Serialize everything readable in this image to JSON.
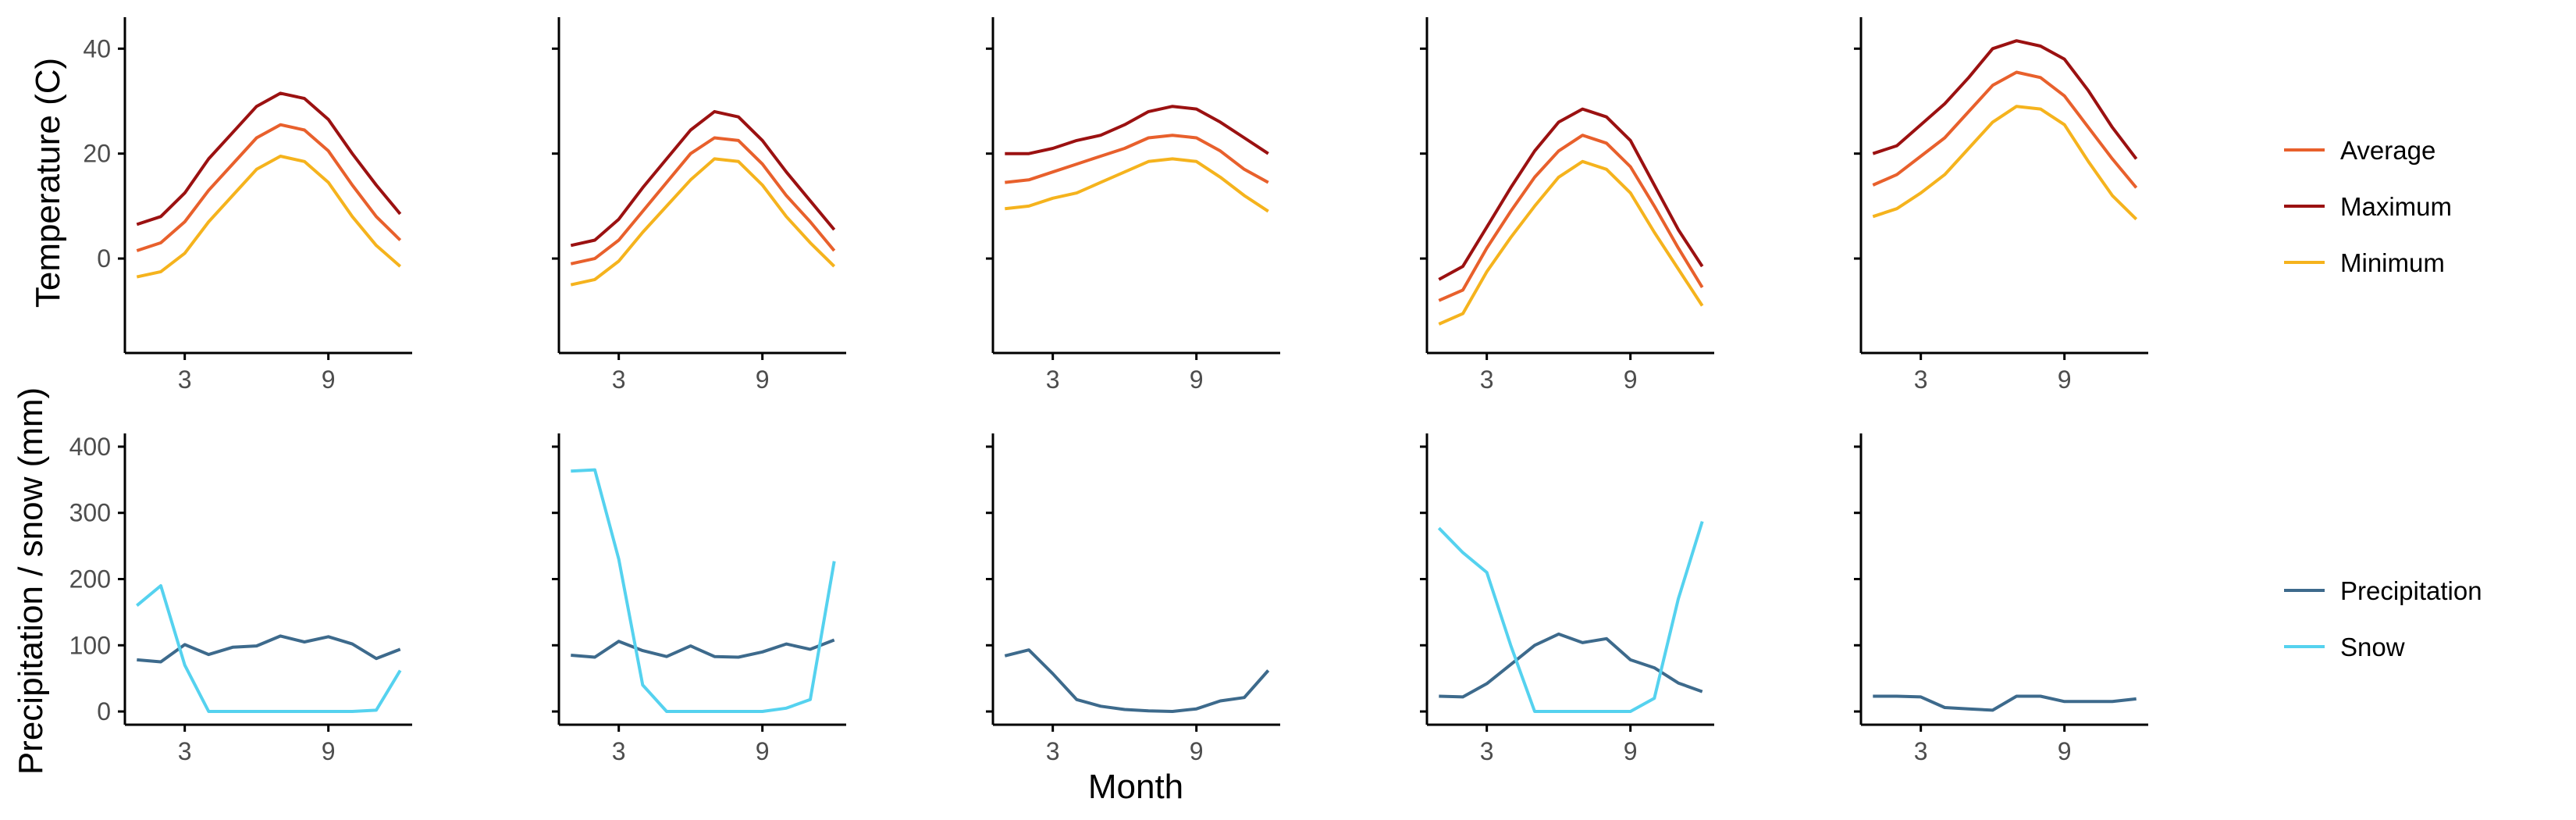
{
  "chart_data": [
    {
      "type": "line",
      "panel": "temperature",
      "column": 1,
      "x": [
        1,
        2,
        3,
        4,
        5,
        6,
        7,
        8,
        9,
        10,
        11,
        12
      ],
      "ylim": [
        -18,
        46
      ],
      "series": [
        {
          "name": "Average",
          "values": [
            1.5,
            3,
            7,
            13,
            18,
            23,
            25.5,
            24.5,
            20.5,
            14,
            8,
            3.5
          ]
        },
        {
          "name": "Maximum",
          "values": [
            6.5,
            8,
            12.5,
            19,
            24,
            29,
            31.5,
            30.5,
            26.5,
            20,
            14,
            8.5
          ]
        },
        {
          "name": "Minimum",
          "values": [
            -3.5,
            -2.5,
            1,
            7,
            12,
            17,
            19.5,
            18.5,
            14.5,
            8,
            2.5,
            -1.5
          ]
        }
      ]
    },
    {
      "type": "line",
      "panel": "temperature",
      "column": 2,
      "x": [
        1,
        2,
        3,
        4,
        5,
        6,
        7,
        8,
        9,
        10,
        11,
        12
      ],
      "ylim": [
        -18,
        46
      ],
      "series": [
        {
          "name": "Average",
          "values": [
            -1,
            0,
            3.5,
            9,
            14.5,
            20,
            23,
            22.5,
            18,
            12,
            7,
            1.5
          ]
        },
        {
          "name": "Maximum",
          "values": [
            2.5,
            3.5,
            7.5,
            13.5,
            19,
            24.5,
            28,
            27,
            22.5,
            16.5,
            11,
            5.5
          ]
        },
        {
          "name": "Minimum",
          "values": [
            -5,
            -4,
            -0.5,
            5,
            10,
            15,
            19,
            18.5,
            14,
            8,
            3,
            -1.5
          ]
        }
      ]
    },
    {
      "type": "line",
      "panel": "temperature",
      "column": 3,
      "x": [
        1,
        2,
        3,
        4,
        5,
        6,
        7,
        8,
        9,
        10,
        11,
        12
      ],
      "ylim": [
        -18,
        46
      ],
      "series": [
        {
          "name": "Average",
          "values": [
            14.5,
            15,
            16.5,
            18,
            19.5,
            21,
            23,
            23.5,
            23,
            20.5,
            17,
            14.5
          ]
        },
        {
          "name": "Maximum",
          "values": [
            20,
            20,
            21,
            22.5,
            23.5,
            25.5,
            28,
            29,
            28.5,
            26,
            23,
            20
          ]
        },
        {
          "name": "Minimum",
          "values": [
            9.5,
            10,
            11.5,
            12.5,
            14.5,
            16.5,
            18.5,
            19,
            18.5,
            15.5,
            12,
            9
          ]
        }
      ]
    },
    {
      "type": "line",
      "panel": "temperature",
      "column": 4,
      "x": [
        1,
        2,
        3,
        4,
        5,
        6,
        7,
        8,
        9,
        10,
        11,
        12
      ],
      "ylim": [
        -18,
        46
      ],
      "series": [
        {
          "name": "Average",
          "values": [
            -8,
            -6,
            2,
            9,
            15.5,
            20.5,
            23.5,
            22,
            17.5,
            10,
            2,
            -5.5
          ]
        },
        {
          "name": "Maximum",
          "values": [
            -4,
            -1.5,
            6,
            13.5,
            20.5,
            26,
            28.5,
            27,
            22.5,
            14,
            5.5,
            -1.5
          ]
        },
        {
          "name": "Minimum",
          "values": [
            -12.5,
            -10.5,
            -2.5,
            4,
            10,
            15.5,
            18.5,
            17,
            12.5,
            5,
            -2,
            -9
          ]
        }
      ]
    },
    {
      "type": "line",
      "panel": "temperature",
      "column": 5,
      "x": [
        1,
        2,
        3,
        4,
        5,
        6,
        7,
        8,
        9,
        10,
        11,
        12
      ],
      "ylim": [
        -18,
        46
      ],
      "series": [
        {
          "name": "Average",
          "values": [
            14,
            16,
            19.5,
            23,
            28,
            33,
            35.5,
            34.5,
            31,
            25,
            19,
            13.5
          ]
        },
        {
          "name": "Maximum",
          "values": [
            20,
            21.5,
            25.5,
            29.5,
            34.5,
            40,
            41.5,
            40.5,
            38,
            32,
            25,
            19
          ]
        },
        {
          "name": "Minimum",
          "values": [
            8,
            9.5,
            12.5,
            16,
            21,
            26,
            29,
            28.5,
            25.5,
            18.5,
            12,
            7.5
          ]
        }
      ]
    },
    {
      "type": "line",
      "panel": "precipitation",
      "column": 1,
      "x": [
        1,
        2,
        3,
        4,
        5,
        6,
        7,
        8,
        9,
        10,
        11,
        12
      ],
      "ylim": [
        -20,
        420
      ],
      "series": [
        {
          "name": "Precipitation",
          "values": [
            78,
            75,
            101,
            86,
            97,
            99,
            114,
            105,
            113,
            102,
            80,
            94
          ]
        },
        {
          "name": "Snow",
          "values": [
            160,
            190,
            70,
            0,
            0,
            0,
            0,
            0,
            0,
            0,
            2,
            62
          ]
        }
      ]
    },
    {
      "type": "line",
      "panel": "precipitation",
      "column": 2,
      "x": [
        1,
        2,
        3,
        4,
        5,
        6,
        7,
        8,
        9,
        10,
        11,
        12
      ],
      "ylim": [
        -20,
        420
      ],
      "series": [
        {
          "name": "Precipitation",
          "values": [
            85,
            82,
            106,
            92,
            83,
            99,
            83,
            82,
            90,
            102,
            94,
            108
          ]
        },
        {
          "name": "Snow",
          "values": [
            363,
            365,
            230,
            40,
            0,
            0,
            0,
            0,
            0,
            5,
            18,
            227
          ]
        }
      ]
    },
    {
      "type": "line",
      "panel": "precipitation",
      "column": 3,
      "x": [
        1,
        2,
        3,
        4,
        5,
        6,
        7,
        8,
        9,
        10,
        11,
        12
      ],
      "ylim": [
        -20,
        420
      ],
      "series": [
        {
          "name": "Precipitation",
          "values": [
            84,
            93,
            57,
            18,
            8,
            3,
            1,
            0,
            4,
            16,
            21,
            62
          ]
        }
      ]
    },
    {
      "type": "line",
      "panel": "precipitation",
      "column": 4,
      "x": [
        1,
        2,
        3,
        4,
        5,
        6,
        7,
        8,
        9,
        10,
        11,
        12
      ],
      "ylim": [
        -20,
        420
      ],
      "series": [
        {
          "name": "Precipitation",
          "values": [
            23,
            22,
            42,
            71,
            100,
            117,
            104,
            110,
            78,
            66,
            43,
            30
          ]
        },
        {
          "name": "Snow",
          "values": [
            277,
            240,
            210,
            100,
            0,
            0,
            0,
            0,
            0,
            20,
            170,
            287
          ]
        }
      ]
    },
    {
      "type": "line",
      "panel": "precipitation",
      "column": 5,
      "x": [
        1,
        2,
        3,
        4,
        5,
        6,
        7,
        8,
        9,
        10,
        11,
        12
      ],
      "ylim": [
        -20,
        420
      ],
      "series": [
        {
          "name": "Precipitation",
          "values": [
            23,
            23,
            22,
            6,
            4,
            2,
            23,
            23,
            15,
            15,
            15,
            19
          ]
        }
      ]
    }
  ],
  "axes": {
    "temperature_title": "Temperature (C)",
    "precipitation_title": "Precipitation / snow (mm)",
    "x_title": "Month",
    "x_ticks": [
      3,
      9
    ],
    "temperature_ticks": [
      0,
      20,
      40
    ],
    "precipitation_ticks": [
      0,
      100,
      200,
      300,
      400
    ]
  },
  "legends": {
    "temperature": [
      {
        "name": "Average",
        "color": "#e8602c"
      },
      {
        "name": "Maximum",
        "color": "#9b1111"
      },
      {
        "name": "Minimum",
        "color": "#f5b31d"
      }
    ],
    "precipitation": [
      {
        "name": "Precipitation",
        "color": "#3d6a8c"
      },
      {
        "name": "Snow",
        "color": "#55d2ef"
      }
    ]
  }
}
